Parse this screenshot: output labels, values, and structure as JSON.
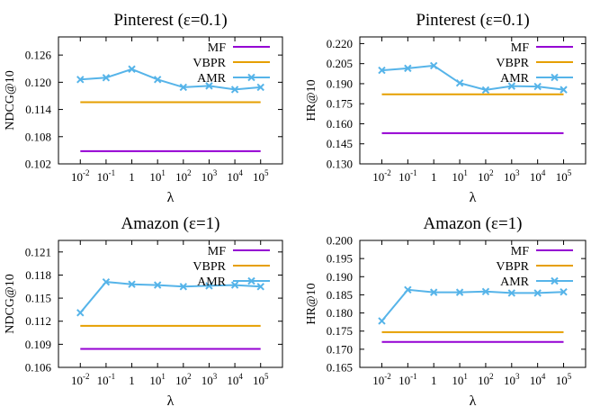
{
  "chart_data": [
    {
      "type": "line",
      "title": "Pinterest (ε=0.1)",
      "xlabel": "λ",
      "ylabel": "NDCG@10",
      "categories": [
        "10^-2",
        "10^-1",
        "1",
        "10^1",
        "10^2",
        "10^3",
        "10^4",
        "10^5"
      ],
      "ylim": [
        0.102,
        0.13
      ],
      "yticks": [
        "0.102",
        "0.108",
        "0.114",
        "0.120",
        "0.126"
      ],
      "legend_position": "top-right",
      "grid": false,
      "series": [
        {
          "name": "MF",
          "color": "#9400d3",
          "marker": "none",
          "values": [
            0.1048,
            0.1048,
            0.1048,
            0.1048,
            0.1048,
            0.1048,
            0.1048,
            0.1048
          ]
        },
        {
          "name": "VBPR",
          "color": "#e69f00",
          "marker": "none",
          "values": [
            0.1156,
            0.1156,
            0.1156,
            0.1156,
            0.1156,
            0.1156,
            0.1156,
            0.1156
          ]
        },
        {
          "name": "AMR",
          "color": "#56b4e9",
          "marker": "x",
          "values": [
            0.1206,
            0.121,
            0.1229,
            0.1206,
            0.1189,
            0.1192,
            0.1184,
            0.1189
          ]
        }
      ]
    },
    {
      "type": "line",
      "title": "Pinterest (ε=0.1)",
      "xlabel": "λ",
      "ylabel": "HR@10",
      "categories": [
        "10^-2",
        "10^-1",
        "1",
        "10^1",
        "10^2",
        "10^3",
        "10^4",
        "10^5"
      ],
      "ylim": [
        0.13,
        0.225
      ],
      "yticks": [
        "0.130",
        "0.145",
        "0.160",
        "0.175",
        "0.190",
        "0.205",
        "0.220"
      ],
      "legend_position": "top-right",
      "grid": false,
      "series": [
        {
          "name": "MF",
          "color": "#9400d3",
          "marker": "none",
          "values": [
            0.153,
            0.153,
            0.153,
            0.153,
            0.153,
            0.153,
            0.153,
            0.153
          ]
        },
        {
          "name": "VBPR",
          "color": "#e69f00",
          "marker": "none",
          "values": [
            0.182,
            0.182,
            0.182,
            0.182,
            0.182,
            0.182,
            0.182,
            0.182
          ]
        },
        {
          "name": "AMR",
          "color": "#56b4e9",
          "marker": "x",
          "values": [
            0.2,
            0.2015,
            0.2035,
            0.1905,
            0.1853,
            0.1882,
            0.1879,
            0.1855
          ]
        }
      ]
    },
    {
      "type": "line",
      "title": "Amazon (ε=1)",
      "xlabel": "λ",
      "ylabel": "NDCG@10",
      "categories": [
        "10^-2",
        "10^-1",
        "1",
        "10^1",
        "10^2",
        "10^3",
        "10^4",
        "10^5"
      ],
      "ylim": [
        0.106,
        0.1225
      ],
      "yticks": [
        "0.106",
        "0.109",
        "0.112",
        "0.115",
        "0.118",
        "0.121"
      ],
      "legend_position": "top-right",
      "grid": false,
      "series": [
        {
          "name": "MF",
          "color": "#9400d3",
          "marker": "none",
          "values": [
            0.1084,
            0.1084,
            0.1084,
            0.1084,
            0.1084,
            0.1084,
            0.1084,
            0.1084
          ]
        },
        {
          "name": "VBPR",
          "color": "#e69f00",
          "marker": "none",
          "values": [
            0.1114,
            0.1114,
            0.1114,
            0.1114,
            0.1114,
            0.1114,
            0.1114,
            0.1114
          ]
        },
        {
          "name": "AMR",
          "color": "#56b4e9",
          "marker": "x",
          "values": [
            0.1131,
            0.1171,
            0.1168,
            0.1167,
            0.1165,
            0.1166,
            0.1167,
            0.1165
          ]
        }
      ]
    },
    {
      "type": "line",
      "title": "Amazon (ε=1)",
      "xlabel": "λ",
      "ylabel": "HR@10",
      "categories": [
        "10^-2",
        "10^-1",
        "1",
        "10^1",
        "10^2",
        "10^3",
        "10^4",
        "10^5"
      ],
      "ylim": [
        0.165,
        0.2
      ],
      "yticks": [
        "0.165",
        "0.170",
        "0.175",
        "0.180",
        "0.185",
        "0.190",
        "0.195",
        "0.200"
      ],
      "legend_position": "top-right",
      "grid": false,
      "series": [
        {
          "name": "MF",
          "color": "#9400d3",
          "marker": "none",
          "values": [
            0.172,
            0.172,
            0.172,
            0.172,
            0.172,
            0.172,
            0.172,
            0.172
          ]
        },
        {
          "name": "VBPR",
          "color": "#e69f00",
          "marker": "none",
          "values": [
            0.1747,
            0.1747,
            0.1747,
            0.1747,
            0.1747,
            0.1747,
            0.1747,
            0.1747
          ]
        },
        {
          "name": "AMR",
          "color": "#56b4e9",
          "marker": "x",
          "values": [
            0.1778,
            0.1864,
            0.1857,
            0.1857,
            0.1859,
            0.1855,
            0.1855,
            0.1858
          ]
        }
      ]
    }
  ]
}
